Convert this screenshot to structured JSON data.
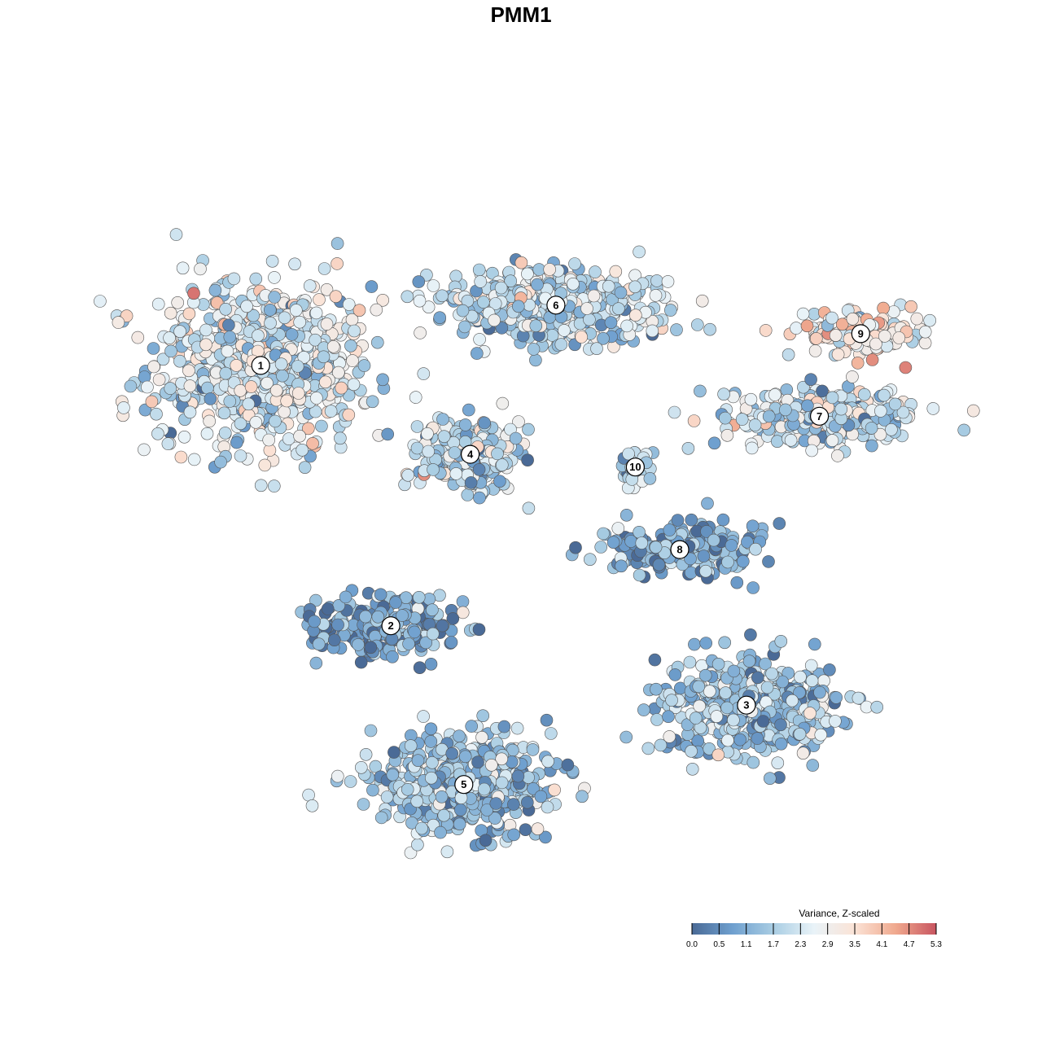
{
  "chart_data": {
    "type": "scatter",
    "title": "PMM1",
    "xlabel": "",
    "ylabel": "",
    "grid": false,
    "legend": {
      "title": "Variance, Z-scaled",
      "placement": "bottom-right",
      "ticks": [
        "0.0",
        "0.5",
        "1.1",
        "1.7",
        "2.3",
        "2.9",
        "3.5",
        "4.1",
        "4.7",
        "5.3"
      ],
      "range": [
        0.0,
        5.3
      ]
    },
    "colorscale": [
      "#4a6a96",
      "#6fa0cf",
      "#a9cde3",
      "#e9f3f8",
      "#fbe3d6",
      "#f0a98e",
      "#c85560"
    ],
    "clusters": [
      {
        "label": "1",
        "x": -8.2,
        "y": 4.9,
        "sx": 3.2,
        "sy": 2.5,
        "n": 700,
        "mean": 2.4
      },
      {
        "label": "2",
        "x": -4.1,
        "y": -3.3,
        "sx": 2.1,
        "sy": 0.9,
        "n": 260,
        "mean": 0.9
      },
      {
        "label": "3",
        "x": 7.1,
        "y": -5.8,
        "sx": 2.6,
        "sy": 1.4,
        "n": 430,
        "mean": 1.6
      },
      {
        "label": "4",
        "x": -1.6,
        "y": 2.1,
        "sx": 1.4,
        "sy": 1.0,
        "n": 260,
        "mean": 2.0
      },
      {
        "label": "5",
        "x": -1.8,
        "y": -8.3,
        "sx": 2.6,
        "sy": 1.3,
        "n": 520,
        "mean": 1.5
      },
      {
        "label": "6",
        "x": 1.1,
        "y": 6.8,
        "sx": 3.2,
        "sy": 1.0,
        "n": 450,
        "mean": 2.0
      },
      {
        "label": "7",
        "x": 9.4,
        "y": 3.3,
        "sx": 2.7,
        "sy": 0.9,
        "n": 300,
        "mean": 2.3
      },
      {
        "label": "8",
        "x": 5.0,
        "y": -0.9,
        "sx": 2.2,
        "sy": 0.8,
        "n": 200,
        "mean": 1.1
      },
      {
        "label": "9",
        "x": 10.7,
        "y": 5.9,
        "sx": 1.7,
        "sy": 0.6,
        "n": 140,
        "mean": 3.2
      },
      {
        "label": "10",
        "x": 3.6,
        "y": 1.7,
        "sx": 0.6,
        "sy": 0.5,
        "n": 40,
        "mean": 1.9
      }
    ]
  }
}
